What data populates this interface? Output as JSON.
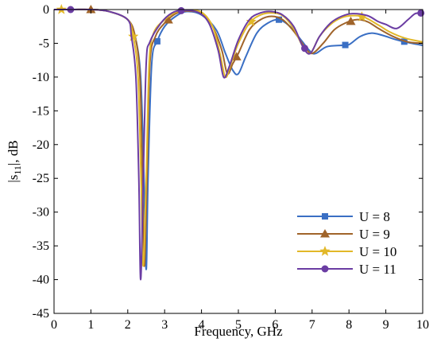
{
  "chart_data": {
    "type": "line",
    "xlabel": "Frequency, GHz",
    "ylabel_main": "|s",
    "ylabel_sub": "11",
    "ylabel_end": "|, dB",
    "xlim": [
      0,
      10
    ],
    "ylim": [
      -45,
      0
    ],
    "xticks": [
      "0",
      "1",
      "2",
      "3",
      "4",
      "5",
      "6",
      "7",
      "8",
      "9",
      "10"
    ],
    "yticks": [
      "0",
      "-5",
      "-10",
      "-15",
      "-20",
      "-25",
      "-30",
      "-35",
      "-40",
      "-45"
    ],
    "grid": false,
    "legend_position": "bottom-right",
    "series": [
      {
        "name": "U = 8",
        "color": "#3a6fc4",
        "marker": "square",
        "points": [
          [
            0,
            0
          ],
          [
            0.4,
            0
          ],
          [
            1,
            0
          ],
          [
            1.5,
            -0.3
          ],
          [
            2,
            -1.5
          ],
          [
            2.2,
            -4
          ],
          [
            2.35,
            -10
          ],
          [
            2.44,
            -25
          ],
          [
            2.5,
            -38.5
          ],
          [
            2.55,
            -25
          ],
          [
            2.65,
            -8
          ],
          [
            2.8,
            -4.7
          ],
          [
            3,
            -2.5
          ],
          [
            3.3,
            -1
          ],
          [
            3.6,
            -0.3
          ],
          [
            4,
            -0.8
          ],
          [
            4.4,
            -3
          ],
          [
            4.65,
            -6.5
          ],
          [
            4.85,
            -9
          ],
          [
            5.0,
            -9.5
          ],
          [
            5.2,
            -7
          ],
          [
            5.5,
            -3.5
          ],
          [
            5.8,
            -2
          ],
          [
            6.1,
            -1.5
          ],
          [
            6.4,
            -2.5
          ],
          [
            6.7,
            -4.5
          ],
          [
            6.95,
            -6.2
          ],
          [
            7.1,
            -6.5
          ],
          [
            7.4,
            -5.5
          ],
          [
            7.8,
            -5.3
          ],
          [
            8,
            -5.2
          ],
          [
            8.3,
            -4
          ],
          [
            8.6,
            -3.5
          ],
          [
            8.9,
            -3.8
          ],
          [
            9.3,
            -4.5
          ],
          [
            9.7,
            -5
          ],
          [
            10,
            -5.3
          ]
        ],
        "markers_x": [
          2.8,
          6.1,
          7.9,
          9.5
        ]
      },
      {
        "name": "U = 9",
        "color": "#a0642a",
        "marker": "triangle",
        "points": [
          [
            0,
            0
          ],
          [
            0.5,
            0
          ],
          [
            1,
            0
          ],
          [
            1.5,
            -0.3
          ],
          [
            2,
            -1.5
          ],
          [
            2.2,
            -4
          ],
          [
            2.33,
            -10
          ],
          [
            2.4,
            -25
          ],
          [
            2.45,
            -38
          ],
          [
            2.52,
            -25
          ],
          [
            2.6,
            -8
          ],
          [
            2.75,
            -4
          ],
          [
            3,
            -2
          ],
          [
            3.3,
            -0.6
          ],
          [
            3.6,
            -0.2
          ],
          [
            4,
            -0.6
          ],
          [
            4.3,
            -2.5
          ],
          [
            4.55,
            -6
          ],
          [
            4.7,
            -9.5
          ],
          [
            4.85,
            -8
          ],
          [
            5.0,
            -6.5
          ],
          [
            5.3,
            -3
          ],
          [
            5.6,
            -1.5
          ],
          [
            5.9,
            -1
          ],
          [
            6.2,
            -1.5
          ],
          [
            6.5,
            -3.2
          ],
          [
            6.8,
            -5.5
          ],
          [
            7.0,
            -6.5
          ],
          [
            7.3,
            -5
          ],
          [
            7.6,
            -3
          ],
          [
            7.9,
            -2
          ],
          [
            8.2,
            -1.5
          ],
          [
            8.5,
            -1.8
          ],
          [
            8.8,
            -2.8
          ],
          [
            9.2,
            -4
          ],
          [
            9.6,
            -4.8
          ],
          [
            10,
            -5
          ]
        ],
        "markers_x": [
          1.0,
          3.1,
          4.95,
          8.05
        ]
      },
      {
        "name": "U = 10",
        "color": "#e2b829",
        "marker": "star",
        "points": [
          [
            0,
            0
          ],
          [
            0.5,
            0
          ],
          [
            1,
            0
          ],
          [
            1.5,
            -0.3
          ],
          [
            2,
            -1.5
          ],
          [
            2.15,
            -4
          ],
          [
            2.28,
            -10
          ],
          [
            2.36,
            -25
          ],
          [
            2.42,
            -38
          ],
          [
            2.5,
            -25
          ],
          [
            2.58,
            -8
          ],
          [
            2.7,
            -3.5
          ],
          [
            3,
            -1.5
          ],
          [
            3.3,
            -0.4
          ],
          [
            3.6,
            -0.1
          ],
          [
            4,
            -0.4
          ],
          [
            4.3,
            -2.5
          ],
          [
            4.5,
            -6.5
          ],
          [
            4.65,
            -10
          ],
          [
            4.8,
            -8
          ],
          [
            5.0,
            -5
          ],
          [
            5.3,
            -2
          ],
          [
            5.6,
            -0.8
          ],
          [
            5.9,
            -0.5
          ],
          [
            6.2,
            -0.9
          ],
          [
            6.5,
            -2.8
          ],
          [
            6.75,
            -5.5
          ],
          [
            6.95,
            -6.5
          ],
          [
            7.2,
            -4
          ],
          [
            7.5,
            -2.2
          ],
          [
            7.8,
            -1.2
          ],
          [
            8.1,
            -0.9
          ],
          [
            8.4,
            -1.1
          ],
          [
            8.8,
            -2.3
          ],
          [
            9.1,
            -3.3
          ],
          [
            9.5,
            -4.2
          ],
          [
            10,
            -4.8
          ]
        ],
        "markers_x": [
          0.2,
          2.15,
          5.35,
          8.35
        ]
      },
      {
        "name": "U = 11",
        "color": "#6b3da3",
        "marker": "circle",
        "points": [
          [
            0,
            0
          ],
          [
            0.5,
            0
          ],
          [
            1,
            0
          ],
          [
            1.5,
            -0.3
          ],
          [
            2,
            -1.5
          ],
          [
            2.1,
            -4
          ],
          [
            2.22,
            -10
          ],
          [
            2.3,
            -25
          ],
          [
            2.35,
            -40
          ],
          [
            2.42,
            -25
          ],
          [
            2.5,
            -8
          ],
          [
            2.6,
            -4.8
          ],
          [
            2.9,
            -2
          ],
          [
            3.2,
            -0.5
          ],
          [
            3.5,
            -0.1
          ],
          [
            3.9,
            -0.4
          ],
          [
            4.2,
            -2
          ],
          [
            4.45,
            -6
          ],
          [
            4.6,
            -10
          ],
          [
            4.75,
            -8.5
          ],
          [
            5.0,
            -4.5
          ],
          [
            5.3,
            -1.5
          ],
          [
            5.6,
            -0.5
          ],
          [
            5.9,
            -0.3
          ],
          [
            6.2,
            -0.8
          ],
          [
            6.5,
            -2.5
          ],
          [
            6.75,
            -5.5
          ],
          [
            6.95,
            -6.5
          ],
          [
            7.2,
            -4
          ],
          [
            7.5,
            -2
          ],
          [
            7.8,
            -1
          ],
          [
            8.1,
            -0.6
          ],
          [
            8.5,
            -0.9
          ],
          [
            8.8,
            -1.8
          ],
          [
            9.0,
            -2.2
          ],
          [
            9.3,
            -2.8
          ],
          [
            9.6,
            -1.5
          ],
          [
            9.8,
            -0.6
          ],
          [
            10,
            -0.5
          ]
        ],
        "markers_x": [
          0.45,
          3.45,
          6.8,
          9.95
        ]
      }
    ]
  }
}
